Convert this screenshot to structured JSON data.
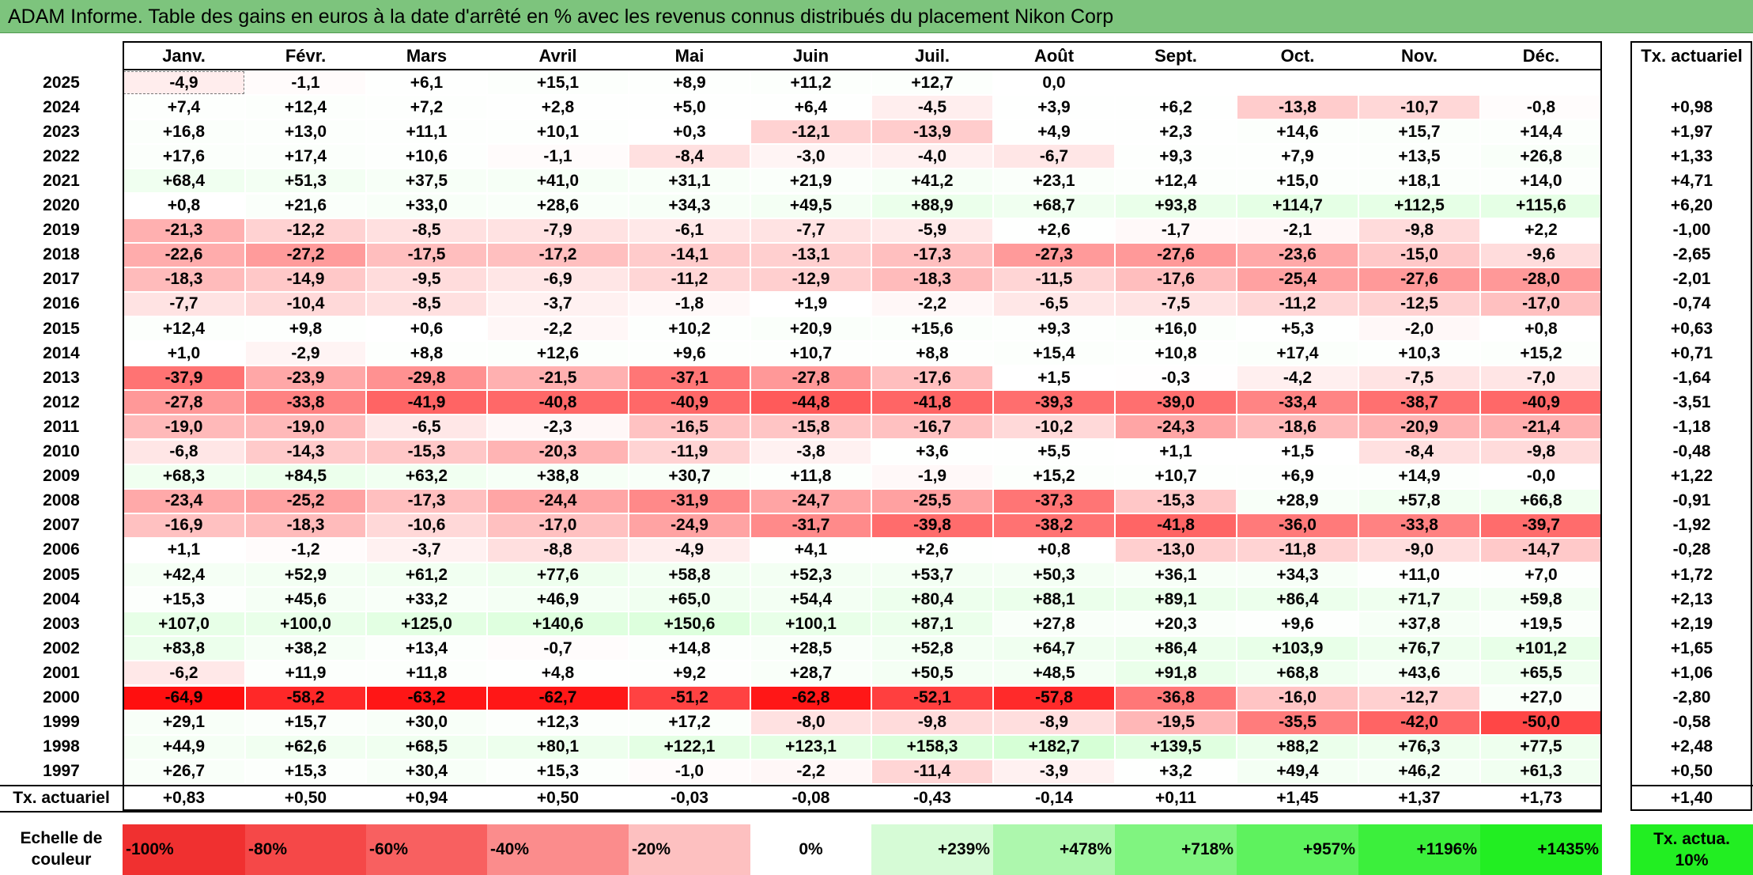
{
  "title": "ADAM Informe. Table des gains en euros à la date d'arrêté en % avec les revenus connus distribués du placement Nikon Corp",
  "months": [
    "Janv.",
    "Févr.",
    "Mars",
    "Avril",
    "Mai",
    "Juin",
    "Juil.",
    "Août",
    "Sept.",
    "Oct.",
    "Nov.",
    "Déc."
  ],
  "rate_header": "Tx. actuariel",
  "rows": [
    {
      "year": "2025",
      "values": [
        "-4,9",
        "-1,1",
        "+6,1",
        "+15,1",
        "+8,9",
        "+11,2",
        "+12,7",
        "0,0",
        "",
        "",
        "",
        ""
      ],
      "rate": ""
    },
    {
      "year": "2024",
      "values": [
        "+7,4",
        "+12,4",
        "+7,2",
        "+2,8",
        "+5,0",
        "+6,4",
        "-4,5",
        "+3,9",
        "+6,2",
        "-13,8",
        "-10,7",
        "-0,8"
      ],
      "rate": "+0,98"
    },
    {
      "year": "2023",
      "values": [
        "+16,8",
        "+13,0",
        "+11,1",
        "+10,1",
        "+0,3",
        "-12,1",
        "-13,9",
        "+4,9",
        "+2,3",
        "+14,6",
        "+15,7",
        "+14,4"
      ],
      "rate": "+1,97"
    },
    {
      "year": "2022",
      "values": [
        "+17,6",
        "+17,4",
        "+10,6",
        "-1,1",
        "-8,4",
        "-3,0",
        "-4,0",
        "-6,7",
        "+9,3",
        "+7,9",
        "+13,5",
        "+26,8"
      ],
      "rate": "+1,33"
    },
    {
      "year": "2021",
      "values": [
        "+68,4",
        "+51,3",
        "+37,5",
        "+41,0",
        "+31,1",
        "+21,9",
        "+41,2",
        "+23,1",
        "+12,4",
        "+15,0",
        "+18,1",
        "+14,0"
      ],
      "rate": "+4,71"
    },
    {
      "year": "2020",
      "values": [
        "+0,8",
        "+21,6",
        "+33,0",
        "+28,6",
        "+34,3",
        "+49,5",
        "+88,9",
        "+68,7",
        "+93,8",
        "+114,7",
        "+112,5",
        "+115,6"
      ],
      "rate": "+6,20"
    },
    {
      "year": "2019",
      "values": [
        "-21,3",
        "-12,2",
        "-8,5",
        "-7,9",
        "-6,1",
        "-7,7",
        "-5,9",
        "+2,6",
        "-1,7",
        "-2,1",
        "-9,8",
        "+2,2"
      ],
      "rate": "-1,00"
    },
    {
      "year": "2018",
      "values": [
        "-22,6",
        "-27,2",
        "-17,5",
        "-17,2",
        "-14,1",
        "-13,1",
        "-17,3",
        "-27,3",
        "-27,6",
        "-23,6",
        "-15,0",
        "-9,6"
      ],
      "rate": "-2,65"
    },
    {
      "year": "2017",
      "values": [
        "-18,3",
        "-14,9",
        "-9,5",
        "-6,9",
        "-11,2",
        "-12,9",
        "-18,3",
        "-11,5",
        "-17,6",
        "-25,4",
        "-27,6",
        "-28,0"
      ],
      "rate": "-2,01"
    },
    {
      "year": "2016",
      "values": [
        "-7,7",
        "-10,4",
        "-8,5",
        "-3,7",
        "-1,8",
        "+1,9",
        "-2,2",
        "-6,5",
        "-7,5",
        "-11,2",
        "-12,5",
        "-17,0"
      ],
      "rate": "-0,74"
    },
    {
      "year": "2015",
      "values": [
        "+12,4",
        "+9,8",
        "+0,6",
        "-2,2",
        "+10,2",
        "+20,9",
        "+15,6",
        "+9,3",
        "+16,0",
        "+5,3",
        "-2,0",
        "+0,8"
      ],
      "rate": "+0,63"
    },
    {
      "year": "2014",
      "values": [
        "+1,0",
        "-2,9",
        "+8,8",
        "+12,6",
        "+9,6",
        "+10,7",
        "+8,8",
        "+15,4",
        "+10,8",
        "+17,4",
        "+10,3",
        "+15,2"
      ],
      "rate": "+0,71"
    },
    {
      "year": "2013",
      "values": [
        "-37,9",
        "-23,9",
        "-29,8",
        "-21,5",
        "-37,1",
        "-27,8",
        "-17,6",
        "+1,5",
        "-0,3",
        "-4,2",
        "-7,5",
        "-7,0"
      ],
      "rate": "-1,64"
    },
    {
      "year": "2012",
      "values": [
        "-27,8",
        "-33,8",
        "-41,9",
        "-40,8",
        "-40,9",
        "-44,8",
        "-41,8",
        "-39,3",
        "-39,0",
        "-33,4",
        "-38,7",
        "-40,9"
      ],
      "rate": "-3,51"
    },
    {
      "year": "2011",
      "values": [
        "-19,0",
        "-19,0",
        "-6,5",
        "-2,3",
        "-16,5",
        "-15,8",
        "-16,7",
        "-10,2",
        "-24,3",
        "-18,6",
        "-20,9",
        "-21,4"
      ],
      "rate": "-1,18"
    },
    {
      "year": "2010",
      "values": [
        "-6,8",
        "-14,3",
        "-15,3",
        "-20,3",
        "-11,9",
        "-3,8",
        "+3,6",
        "+5,5",
        "+1,1",
        "+1,5",
        "-8,4",
        "-9,8"
      ],
      "rate": "-0,48"
    },
    {
      "year": "2009",
      "values": [
        "+68,3",
        "+84,5",
        "+63,2",
        "+38,8",
        "+30,7",
        "+11,8",
        "-1,9",
        "+15,2",
        "+10,7",
        "+6,9",
        "+14,9",
        "-0,0"
      ],
      "rate": "+1,22"
    },
    {
      "year": "2008",
      "values": [
        "-23,4",
        "-25,2",
        "-17,3",
        "-24,4",
        "-31,9",
        "-24,7",
        "-25,5",
        "-37,3",
        "-15,3",
        "+28,9",
        "+57,8",
        "+66,8"
      ],
      "rate": "-0,91"
    },
    {
      "year": "2007",
      "values": [
        "-16,9",
        "-18,3",
        "-10,6",
        "-17,0",
        "-24,9",
        "-31,7",
        "-39,8",
        "-38,2",
        "-41,8",
        "-36,0",
        "-33,8",
        "-39,7"
      ],
      "rate": "-1,92"
    },
    {
      "year": "2006",
      "values": [
        "+1,1",
        "-1,2",
        "-3,7",
        "-8,8",
        "-4,9",
        "+4,1",
        "+2,6",
        "+0,8",
        "-13,0",
        "-11,8",
        "-9,0",
        "-14,7"
      ],
      "rate": "-0,28"
    },
    {
      "year": "2005",
      "values": [
        "+42,4",
        "+52,9",
        "+61,2",
        "+77,6",
        "+58,8",
        "+52,3",
        "+53,7",
        "+50,3",
        "+36,1",
        "+34,3",
        "+11,0",
        "+7,0"
      ],
      "rate": "+1,72"
    },
    {
      "year": "2004",
      "values": [
        "+15,3",
        "+45,6",
        "+33,2",
        "+46,9",
        "+65,0",
        "+54,4",
        "+80,4",
        "+88,1",
        "+89,1",
        "+86,4",
        "+71,7",
        "+59,8"
      ],
      "rate": "+2,13"
    },
    {
      "year": "2003",
      "values": [
        "+107,0",
        "+100,0",
        "+125,0",
        "+140,6",
        "+150,6",
        "+100,1",
        "+87,1",
        "+27,8",
        "+20,3",
        "+9,6",
        "+37,8",
        "+19,5"
      ],
      "rate": "+2,19"
    },
    {
      "year": "2002",
      "values": [
        "+83,8",
        "+38,2",
        "+13,4",
        "-0,7",
        "+14,8",
        "+28,5",
        "+52,8",
        "+64,7",
        "+86,4",
        "+103,9",
        "+76,7",
        "+101,2"
      ],
      "rate": "+1,65"
    },
    {
      "year": "2001",
      "values": [
        "-6,2",
        "+11,9",
        "+11,8",
        "+4,8",
        "+9,2",
        "+28,7",
        "+50,5",
        "+48,5",
        "+91,8",
        "+68,8",
        "+43,6",
        "+65,5"
      ],
      "rate": "+1,06"
    },
    {
      "year": "2000",
      "values": [
        "-64,9",
        "-58,2",
        "-63,2",
        "-62,7",
        "-51,2",
        "-62,8",
        "-52,1",
        "-57,8",
        "-36,8",
        "-16,0",
        "-12,7",
        "+27,0"
      ],
      "rate": "-2,80"
    },
    {
      "year": "1999",
      "values": [
        "+29,1",
        "+15,7",
        "+30,0",
        "+12,3",
        "+17,2",
        "-8,0",
        "-9,8",
        "-8,9",
        "-19,5",
        "-35,5",
        "-42,0",
        "-50,0"
      ],
      "rate": "-0,58"
    },
    {
      "year": "1998",
      "values": [
        "+44,9",
        "+62,6",
        "+68,5",
        "+80,1",
        "+122,1",
        "+123,1",
        "+158,3",
        "+182,7",
        "+139,5",
        "+88,2",
        "+76,3",
        "+77,5"
      ],
      "rate": "+2,48"
    },
    {
      "year": "1997",
      "values": [
        "+26,7",
        "+15,3",
        "+30,4",
        "+15,3",
        "-1,0",
        "-2,2",
        "-11,4",
        "-3,9",
        "+3,2",
        "+49,4",
        "+46,2",
        "+61,3"
      ],
      "rate": "+0,50"
    }
  ],
  "footer": {
    "label": "Tx. actuariel",
    "values": [
      "+0,83",
      "+0,50",
      "+0,94",
      "+0,50",
      "-0,03",
      "-0,08",
      "-0,43",
      "-0,14",
      "+0,11",
      "+1,45",
      "+1,37",
      "+1,73"
    ],
    "rate": "+1,40"
  },
  "legend": {
    "label": "Echelle de couleur",
    "steps": [
      {
        "label": "-100%",
        "color": "#f03030",
        "align": "left"
      },
      {
        "label": "-80%",
        "color": "#f54848",
        "align": "left"
      },
      {
        "label": "-60%",
        "color": "#f86060",
        "align": "left"
      },
      {
        "label": "-40%",
        "color": "#fb8c8c",
        "align": "left"
      },
      {
        "label": "-20%",
        "color": "#fdc0c0",
        "align": "left"
      },
      {
        "label": "0%",
        "color": "#ffffff",
        "align": "center"
      },
      {
        "label": "+239%",
        "color": "#d6fbd6",
        "align": "right"
      },
      {
        "label": "+478%",
        "color": "#adf7ad",
        "align": "right"
      },
      {
        "label": "+718%",
        "color": "#80f480",
        "align": "right"
      },
      {
        "label": "+957%",
        "color": "#5ef25e",
        "align": "right"
      },
      {
        "label": "+1196%",
        "color": "#3cef3c",
        "align": "right"
      },
      {
        "label": "+1435%",
        "color": "#22ee22",
        "align": "right"
      }
    ],
    "rate_label": "Tx. actua. 10%",
    "rate_color": "#22ee22"
  }
}
